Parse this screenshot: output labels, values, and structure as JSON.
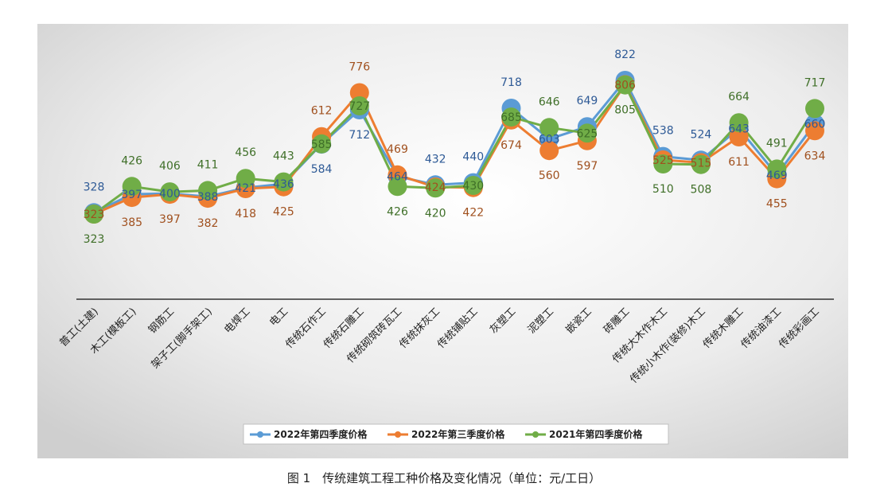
{
  "caption": "图 1　传统建筑工程工种价格及变化情况（单位：元/工日）",
  "chart_data": {
    "type": "line",
    "categories": [
      "普工(土建)",
      "木工(模板工)",
      "钢筋工",
      "架子工(脚手架工)",
      "电焊工",
      "电工",
      "传统石作工",
      "传统石雕工",
      "传统砌筑砖瓦工",
      "传统抹灰工",
      "传统铺贴工",
      "灰塑工",
      "泥塑工",
      "嵌瓷工",
      "砖雕工",
      "传统大木作木工",
      "传统小木作(装修)木工",
      "传统木雕工",
      "传统油漆工",
      "传统彩画工"
    ],
    "series": [
      {
        "name": "2022年第四季度价格",
        "color": "#5b9bd5",
        "values": [
          328,
          397,
          400,
          388,
          421,
          436,
          584,
          712,
          464,
          432,
          440,
          718,
          603,
          649,
          822,
          538,
          524,
          643,
          469,
          660
        ]
      },
      {
        "name": "2022年第三季度价格",
        "color": "#ed7d31",
        "values": [
          323,
          385,
          397,
          382,
          418,
          425,
          612,
          776,
          469,
          424,
          422,
          674,
          560,
          597,
          806,
          525,
          515,
          611,
          455,
          634
        ]
      },
      {
        "name": "2021年第四季度价格",
        "color": "#70ad47",
        "values": [
          323,
          426,
          406,
          411,
          456,
          443,
          585,
          727,
          426,
          420,
          430,
          685,
          646,
          625,
          805,
          510,
          508,
          664,
          491,
          717
        ]
      }
    ],
    "legend_position": "bottom",
    "grid": false
  }
}
